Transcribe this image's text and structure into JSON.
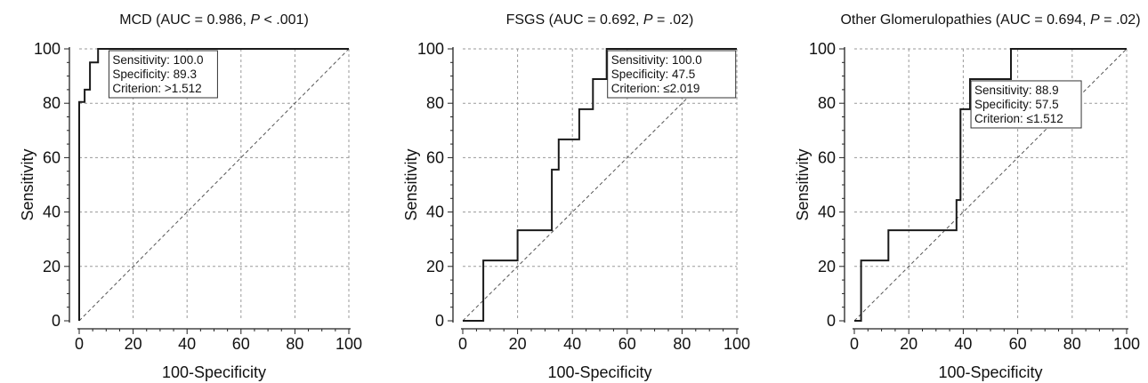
{
  "chart_data": [
    {
      "type": "line",
      "title": "MCD (AUC = 0.986, P < .001)",
      "title_parts": {
        "pre": "MCD (AUC = 0.986, ",
        "p": "P",
        "post": " < .001)"
      },
      "xlabel": "100-Specificity",
      "ylabel": "Sensitivity",
      "xlim": [
        0,
        100
      ],
      "ylim": [
        0,
        100
      ],
      "xticks": [
        "0",
        "20",
        "40",
        "60",
        "80",
        "100"
      ],
      "yticks": [
        "0",
        "20",
        "40",
        "60",
        "80",
        "100"
      ],
      "grid": true,
      "roc_x": [
        0,
        0,
        2,
        2,
        4,
        4,
        7,
        7,
        10.7,
        10.7,
        100
      ],
      "roc_y": [
        0,
        80.5,
        80.5,
        85,
        85,
        95,
        95,
        100,
        100,
        100,
        100
      ],
      "reference_x": [
        0,
        100
      ],
      "reference_y": [
        0,
        100
      ],
      "annotation_lines": [
        "Sensitivity: 100.0",
        "Specificity: 89.3",
        "Criterion: >1.512"
      ],
      "annotation_point": {
        "x": 10.7,
        "y": 100
      }
    },
    {
      "type": "line",
      "title": "FSGS (AUC = 0.692, P = .02)",
      "title_parts": {
        "pre": "FSGS (AUC = 0.692, ",
        "p": "P",
        "post": " = .02)"
      },
      "xlabel": "100-Specificity",
      "ylabel": "Sensitivity",
      "xlim": [
        0,
        100
      ],
      "ylim": [
        0,
        100
      ],
      "xticks": [
        "0",
        "20",
        "40",
        "60",
        "80",
        "100"
      ],
      "yticks": [
        "0",
        "20",
        "40",
        "60",
        "80",
        "100"
      ],
      "grid": true,
      "roc_x": [
        0,
        7.5,
        7.5,
        20,
        20,
        32.5,
        32.5,
        35,
        35,
        42.5,
        42.5,
        47.5,
        47.5,
        52.5,
        52.5,
        100
      ],
      "roc_y": [
        0,
        0,
        22.2,
        22.2,
        33.3,
        33.3,
        55.6,
        55.6,
        66.7,
        66.7,
        77.8,
        77.8,
        88.9,
        88.9,
        100,
        100
      ],
      "reference_x": [
        0,
        100
      ],
      "reference_y": [
        0,
        100
      ],
      "annotation_lines": [
        "Sensitivity: 100.0",
        "Specificity: 47.5",
        "Criterion: ≤2.019"
      ],
      "annotation_point": {
        "x": 52.5,
        "y": 100
      }
    },
    {
      "type": "line",
      "title": "Other Glomerulopathies (AUC = 0.694, P = .02)",
      "title_parts": {
        "pre": "Other Glomerulopathies (AUC = 0.694, ",
        "p": "P",
        "post": " = .02)"
      },
      "xlabel": "100-Specificity",
      "ylabel": "Sensitivity",
      "xlim": [
        0,
        100
      ],
      "ylim": [
        0,
        100
      ],
      "xticks": [
        "0",
        "20",
        "40",
        "60",
        "80",
        "100"
      ],
      "yticks": [
        "0",
        "20",
        "40",
        "60",
        "80",
        "100"
      ],
      "grid": true,
      "roc_x": [
        0,
        2.5,
        2.5,
        12.5,
        12.5,
        37.5,
        37.5,
        39,
        39,
        42.5,
        42.5,
        57.5,
        57.5,
        100
      ],
      "roc_y": [
        0,
        0,
        22.2,
        22.2,
        33.3,
        33.3,
        44.4,
        44.4,
        77.8,
        77.8,
        88.9,
        88.9,
        100,
        100
      ],
      "reference_x": [
        0,
        100
      ],
      "reference_y": [
        0,
        100
      ],
      "annotation_lines": [
        "Sensitivity: 88.9",
        "Specificity: 57.5",
        "Criterion: ≤1.512"
      ],
      "annotation_point": {
        "x": 42.5,
        "y": 88.9
      }
    }
  ]
}
